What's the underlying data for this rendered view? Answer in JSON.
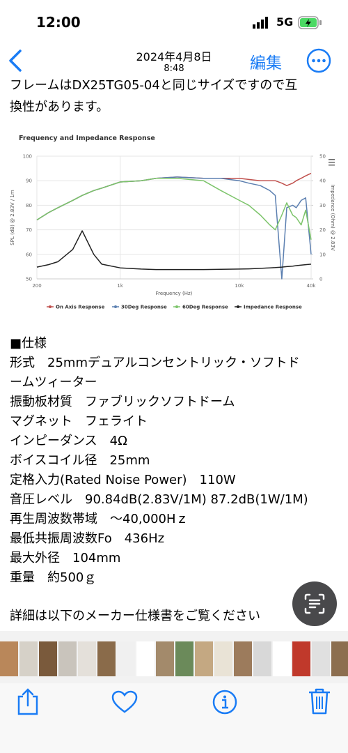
{
  "status_bar": {
    "time": "12:00",
    "network": "5G"
  },
  "nav_bar": {
    "date": "2024年4月8日",
    "time": "8:48",
    "edit": "編集"
  },
  "content": {
    "intro_lines": [
      "フレームはDX25TG05-04と同じサイズですので互",
      "換性があります。"
    ],
    "spec_lines": [
      "■仕様",
      "形式　25mmデュアルコンセントリック・ソフトド",
      "ームツィーター",
      "振動板材質　ファブリックソフトドーム",
      "マグネット　フェライト",
      "インピーダンス　4Ω",
      "ボイスコイル径　25mm",
      "定格入力(Rated Noise Power)　110W",
      "音圧レベル　90.84dB(2.83V/1M) 87.2dB(1W/1M)",
      "再生周波数帯域　～40,000Hｚ",
      "最低共振周波数Fo　436Hz",
      "最大外径　104mm",
      "重量　約500ｇ"
    ],
    "footer_line": "詳細は以下のメーカー仕様書をご覧ください"
  },
  "chart_data": {
    "type": "line",
    "title": "Frequency and Impedance Response",
    "x_label": "Frequency (Hz)",
    "y_label": "SPL (dB) @ 2.83V / 1m",
    "y2_label": "Impedance (Ohm) @ 2.83V",
    "x_scale": "log",
    "x": [
      200,
      250,
      300,
      400,
      480,
      600,
      700,
      1000,
      1500,
      2000,
      3000,
      5000,
      7000,
      10000,
      12000,
      15000,
      18000,
      20000,
      22700,
      25000,
      28000,
      30000,
      33000,
      36000,
      40000
    ],
    "xlim": [
      200,
      40000
    ],
    "xticks": [
      200,
      {
        "value": 1000,
        "label": "1k"
      },
      {
        "value": 10000,
        "label": "10k"
      },
      {
        "value": 40000,
        "label": "40k"
      }
    ],
    "ylim": [
      50,
      100
    ],
    "yticks": [
      50,
      60,
      70,
      80,
      90,
      100
    ],
    "y2lim": [
      0,
      50
    ],
    "y2ticks": [
      0,
      10,
      20,
      30,
      40,
      50
    ],
    "grid": true,
    "legend": "bottom",
    "series": [
      {
        "name": "On Axis Response",
        "color": "#c0504d",
        "values": [
          74,
          77,
          79,
          82,
          84,
          86,
          87,
          89.5,
          90,
          91,
          91.5,
          91,
          91,
          91,
          90.5,
          90,
          90,
          90,
          89,
          88,
          89,
          90,
          91,
          92,
          93
        ]
      },
      {
        "name": "30Deg Response",
        "color": "#5b7fb0",
        "values": [
          74,
          77,
          79,
          82,
          84,
          86,
          87,
          89.5,
          90,
          91,
          91.5,
          91,
          91,
          90,
          89,
          88,
          86,
          84,
          50,
          79,
          80,
          79,
          82,
          83,
          60
        ]
      },
      {
        "name": "60Deg Response",
        "color": "#7cc46a",
        "values": [
          74,
          77,
          79,
          82,
          84,
          86,
          87,
          89.5,
          90,
          91,
          91,
          90,
          86,
          82,
          80,
          76,
          72,
          70,
          76,
          81,
          76,
          75,
          72,
          78,
          66
        ]
      },
      {
        "name": "Impedance Response",
        "color": "#222222",
        "axis": "y2",
        "values": [
          4.8,
          5.8,
          7,
          12,
          19.6,
          10,
          6,
          4.5,
          4,
          3.8,
          3.8,
          3.8,
          3.9,
          4,
          4.1,
          4.3,
          4.5,
          4.6,
          4.8,
          5,
          5.2,
          5.4,
          5.6,
          5.8,
          6
        ]
      }
    ]
  }
}
